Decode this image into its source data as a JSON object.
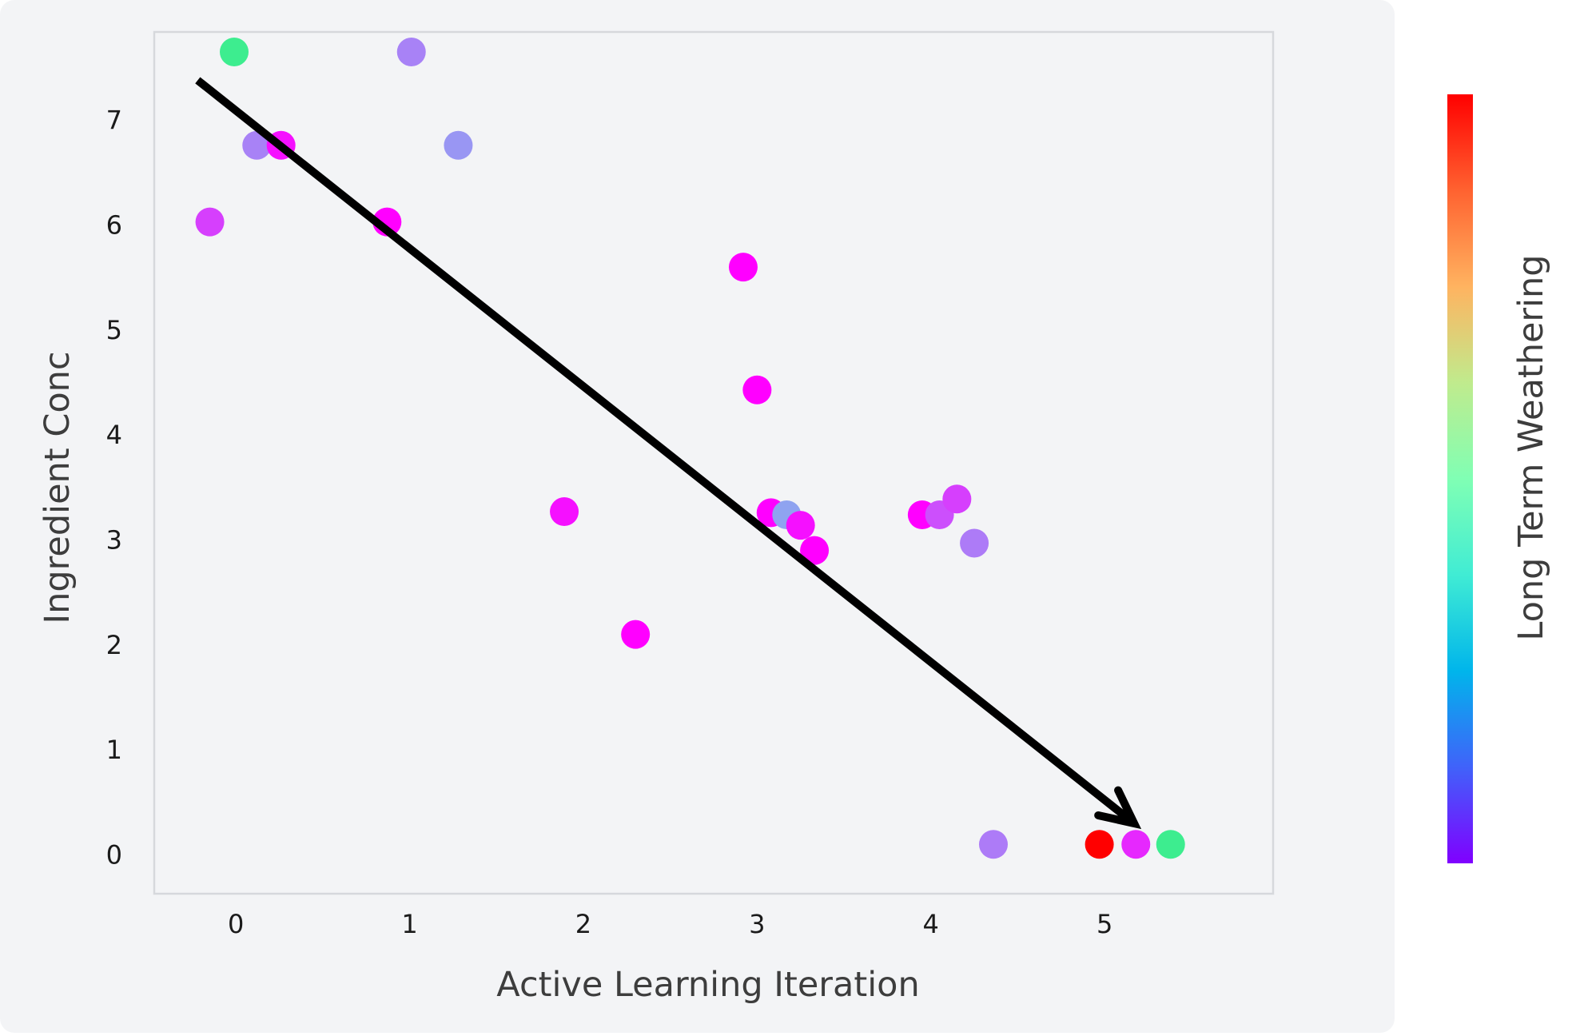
{
  "chart_data": {
    "type": "scatter",
    "title": "",
    "xlabel": "Active Learning Iteration",
    "ylabel": "Ingredient Conc",
    "colorbar_label": "Long Term Weathering",
    "xlim": [
      -0.47,
      5.97
    ],
    "ylim": [
      -0.37,
      7.84
    ],
    "x_ticks": [
      "0",
      "1",
      "2",
      "3",
      "4",
      "5"
    ],
    "y_ticks": [
      "0",
      "1",
      "2",
      "3",
      "4",
      "5",
      "6",
      "7"
    ],
    "grid": false,
    "colorbar": {
      "colormap": "rainbow",
      "range": [
        0,
        1
      ],
      "show_tick_labels": false
    },
    "points": [
      {
        "x": -0.01,
        "y": 7.65,
        "color": 0.62
      },
      {
        "x": 1.01,
        "y": 7.65,
        "color": 0.17
      },
      {
        "x": 0.12,
        "y": 6.76,
        "color": 0.17
      },
      {
        "x": 0.26,
        "y": 6.76,
        "color": 0.02
      },
      {
        "x": 1.28,
        "y": 6.76,
        "color": 0.2
      },
      {
        "x": -0.15,
        "y": 6.03,
        "color": 0.08
      },
      {
        "x": 0.87,
        "y": 6.03,
        "color": 0.0
      },
      {
        "x": 2.92,
        "y": 5.6,
        "color": 0.0
      },
      {
        "x": 3.0,
        "y": 4.43,
        "color": 0.0
      },
      {
        "x": 1.89,
        "y": 3.27,
        "color": 0.02
      },
      {
        "x": 3.08,
        "y": 3.26,
        "color": 0.0
      },
      {
        "x": 3.17,
        "y": 3.24,
        "color": 0.22
      },
      {
        "x": 3.25,
        "y": 3.14,
        "color": 0.02
      },
      {
        "x": 3.33,
        "y": 2.9,
        "color": 0.0
      },
      {
        "x": 3.95,
        "y": 3.24,
        "color": 0.0
      },
      {
        "x": 4.05,
        "y": 3.24,
        "color": 0.1
      },
      {
        "x": 4.15,
        "y": 3.39,
        "color": 0.08
      },
      {
        "x": 4.25,
        "y": 2.97,
        "color": 0.16
      },
      {
        "x": 2.3,
        "y": 2.1,
        "color": 0.0
      },
      {
        "x": 4.36,
        "y": 0.1,
        "color": 0.16
      },
      {
        "x": 4.97,
        "y": 0.1,
        "color": 1.0
      },
      {
        "x": 5.18,
        "y": 0.1,
        "color": 0.05
      },
      {
        "x": 5.38,
        "y": 0.1,
        "color": 0.62
      }
    ],
    "annotations": [
      {
        "type": "arrow",
        "from": [
          -0.22,
          7.38
        ],
        "to": [
          5.17,
          0.3
        ]
      }
    ]
  }
}
